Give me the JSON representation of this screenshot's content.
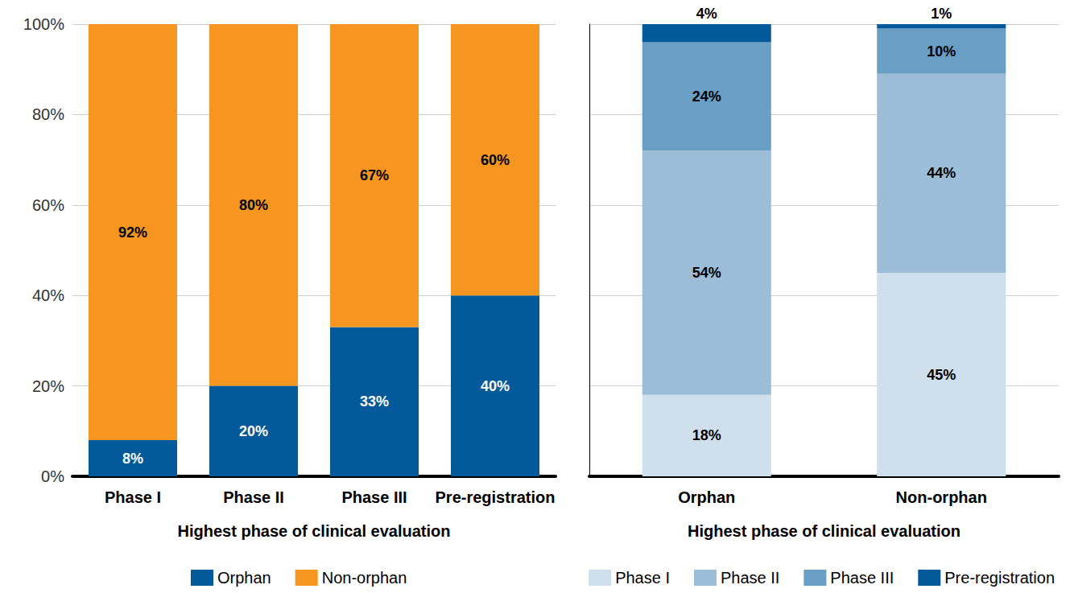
{
  "chart_data": [
    {
      "type": "bar",
      "stacked": true,
      "data_labels": true,
      "grid": true,
      "legend": "bottom",
      "x_label": "Highest phase of clinical evaluation",
      "categories": [
        "Phase I",
        "Phase II",
        "Phase III",
        "Pre-registration"
      ],
      "ylim": [
        0,
        100
      ],
      "yticks": [
        {
          "value": 0,
          "label": "0%"
        },
        {
          "value": 20,
          "label": "20%"
        },
        {
          "value": 40,
          "label": "40%"
        },
        {
          "value": 60,
          "label": "60%"
        },
        {
          "value": 80,
          "label": "80%"
        },
        {
          "value": 100,
          "label": "100%"
        }
      ],
      "series": [
        {
          "name": "Orphan",
          "color": "#035a9a",
          "values": [
            8,
            20,
            33,
            40
          ],
          "value_labels": [
            "8%",
            "20%",
            "33%",
            "40%"
          ]
        },
        {
          "name": "Non-orphan",
          "color": "#f6951f",
          "values": [
            92,
            80,
            67,
            60
          ],
          "value_labels": [
            "92%",
            "80%",
            "67%",
            "60%"
          ]
        }
      ]
    },
    {
      "type": "bar",
      "stacked": true,
      "data_labels": true,
      "grid": true,
      "legend": "bottom",
      "tick_labels": "x",
      "x_label": "Highest phase of clinical evaluation",
      "categories": [
        "Orphan",
        "Non-orphan"
      ],
      "ylim": [
        0,
        100
      ],
      "yticks": [
        0,
        20,
        40,
        60,
        80,
        100
      ],
      "series": [
        {
          "name": "Phase I",
          "color": "#cfe0ec",
          "values": [
            18,
            45
          ],
          "value_labels": [
            "18%",
            "45%"
          ]
        },
        {
          "name": "Phase II",
          "color": "#9bbdd8",
          "values": [
            54,
            44
          ],
          "value_labels": [
            "54%",
            "44%"
          ]
        },
        {
          "name": "Phase III",
          "color": "#699fc5",
          "values": [
            24,
            10
          ],
          "value_labels": [
            "24%",
            "10%"
          ]
        },
        {
          "name": "Pre-registration",
          "color": "#035a9a",
          "values": [
            4,
            1
          ],
          "value_labels": [
            "4%",
            "1%"
          ]
        }
      ]
    }
  ]
}
